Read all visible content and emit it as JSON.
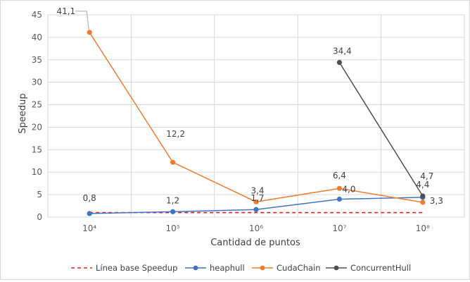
{
  "chart_data": {
    "type": "line",
    "xlabel": "Cantidad de puntos",
    "ylabel": "Speedup",
    "categories": [
      "10⁴",
      "10⁵",
      "10⁶",
      "10⁷",
      "10⁸"
    ],
    "ylim": [
      0,
      45
    ],
    "yticks": [
      "0",
      "5",
      "10",
      "15",
      "20",
      "25",
      "30",
      "35",
      "40",
      "45"
    ],
    "grid": "vertical and horizontal",
    "legend_position": "bottom",
    "series": [
      {
        "name": "Línea base Speedup",
        "color": "#e02020",
        "style": "dashed",
        "values": [
          1,
          1,
          1,
          1,
          1
        ],
        "labels": [
          null,
          null,
          null,
          null,
          null
        ]
      },
      {
        "name": "heaphull",
        "color": "#4472c4",
        "style": "solid",
        "values": [
          0.8,
          1.2,
          1.7,
          4.0,
          4.4
        ],
        "labels": [
          "0,8",
          "1,2",
          "1,7",
          "4,0",
          "4,4"
        ]
      },
      {
        "name": "CudaChain",
        "color": "#ed7d31",
        "style": "solid",
        "values": [
          41.1,
          12.2,
          3.4,
          6.4,
          3.3
        ],
        "labels": [
          "41,1",
          "12,2",
          "3,4",
          "6,4",
          "3,3"
        ]
      },
      {
        "name": "ConcurrentHull",
        "color": "#505050",
        "style": "solid",
        "values": [
          null,
          null,
          null,
          34.4,
          4.7
        ],
        "labels": [
          null,
          null,
          null,
          "34,4",
          "4,7"
        ]
      }
    ]
  }
}
